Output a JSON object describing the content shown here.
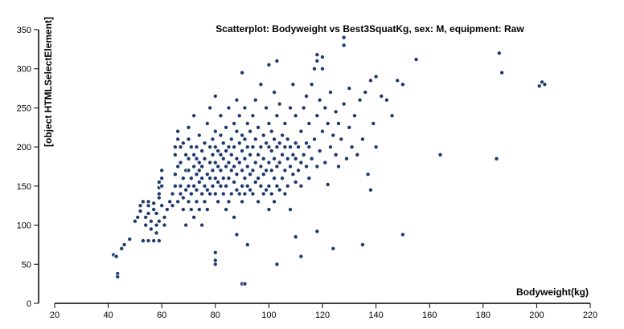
{
  "chart_data": {
    "type": "scatter",
    "title": "Scatterplot: Bodyweight vs Best3SquatKg, sex: M, equipment: Raw",
    "xlabel": "Bodyweight(kg)",
    "ylabel": "[object HTMLSelectElement]",
    "xlim": [
      20,
      220
    ],
    "ylim": [
      0,
      350
    ],
    "xticks": [
      20,
      40,
      60,
      80,
      100,
      120,
      140,
      160,
      180,
      200,
      220
    ],
    "yticks": [
      0,
      50,
      100,
      150,
      200,
      250,
      300,
      350
    ],
    "grid": false,
    "point_color": "#1f3a6e",
    "points": [
      [
        42,
        62
      ],
      [
        43,
        60
      ],
      [
        43.5,
        38
      ],
      [
        43.5,
        34
      ],
      [
        45,
        70
      ],
      [
        46,
        75
      ],
      [
        48,
        82
      ],
      [
        50,
        105
      ],
      [
        51,
        110
      ],
      [
        52,
        118
      ],
      [
        52,
        125
      ],
      [
        53,
        130
      ],
      [
        53,
        80
      ],
      [
        54,
        100
      ],
      [
        54,
        110
      ],
      [
        55,
        115
      ],
      [
        55,
        125
      ],
      [
        55,
        130
      ],
      [
        55,
        80
      ],
      [
        56,
        95
      ],
      [
        56,
        105
      ],
      [
        57,
        80
      ],
      [
        57,
        120
      ],
      [
        57,
        128
      ],
      [
        58,
        90
      ],
      [
        58,
        100
      ],
      [
        58,
        115
      ],
      [
        59,
        80
      ],
      [
        59,
        105
      ],
      [
        59,
        135
      ],
      [
        59,
        140
      ],
      [
        59,
        148
      ],
      [
        59,
        155
      ],
      [
        60,
        150
      ],
      [
        60,
        160
      ],
      [
        60,
        170
      ],
      [
        60,
        125
      ],
      [
        61,
        110
      ],
      [
        61,
        100
      ],
      [
        62,
        120
      ],
      [
        63,
        130
      ],
      [
        64,
        125
      ],
      [
        64,
        140
      ],
      [
        65,
        150
      ],
      [
        65,
        165
      ],
      [
        65,
        190
      ],
      [
        65,
        200
      ],
      [
        66,
        130
      ],
      [
        66,
        175
      ],
      [
        66,
        210
      ],
      [
        66,
        220
      ],
      [
        67,
        140
      ],
      [
        67,
        150
      ],
      [
        67,
        180
      ],
      [
        67,
        200
      ],
      [
        68,
        120
      ],
      [
        68,
        135
      ],
      [
        68,
        160
      ],
      [
        68,
        205
      ],
      [
        69,
        145
      ],
      [
        69,
        170
      ],
      [
        69,
        190
      ],
      [
        69,
        100
      ],
      [
        70,
        130
      ],
      [
        70,
        150
      ],
      [
        70,
        170
      ],
      [
        70,
        185
      ],
      [
        70,
        210
      ],
      [
        70,
        225
      ],
      [
        71,
        120
      ],
      [
        71,
        140
      ],
      [
        71,
        160
      ],
      [
        71,
        200
      ],
      [
        72,
        110
      ],
      [
        72,
        150
      ],
      [
        72,
        175
      ],
      [
        72,
        190
      ],
      [
        72,
        240
      ],
      [
        73,
        130
      ],
      [
        73,
        145
      ],
      [
        73,
        165
      ],
      [
        73,
        185
      ],
      [
        73,
        200
      ],
      [
        74,
        120
      ],
      [
        74,
        155
      ],
      [
        74,
        170
      ],
      [
        74,
        180
      ],
      [
        74,
        215
      ],
      [
        75,
        140
      ],
      [
        75,
        160
      ],
      [
        75,
        175
      ],
      [
        75,
        195
      ],
      [
        75,
        100
      ],
      [
        76,
        130
      ],
      [
        76,
        150
      ],
      [
        76,
        185
      ],
      [
        76,
        205
      ],
      [
        77,
        120
      ],
      [
        77,
        145
      ],
      [
        77,
        165
      ],
      [
        77,
        230
      ],
      [
        78,
        140
      ],
      [
        78,
        160
      ],
      [
        78,
        180
      ],
      [
        78,
        200
      ],
      [
        78,
        250
      ],
      [
        79,
        150
      ],
      [
        79,
        170
      ],
      [
        79,
        190
      ],
      [
        79,
        210
      ],
      [
        80,
        50
      ],
      [
        80,
        55
      ],
      [
        80,
        65
      ],
      [
        80,
        140
      ],
      [
        80,
        160
      ],
      [
        80,
        180
      ],
      [
        80,
        200
      ],
      [
        80,
        220
      ],
      [
        80,
        265
      ],
      [
        81,
        130
      ],
      [
        81,
        155
      ],
      [
        81,
        175
      ],
      [
        81,
        195
      ],
      [
        82,
        150
      ],
      [
        82,
        170
      ],
      [
        82,
        190
      ],
      [
        82,
        215
      ],
      [
        82,
        240
      ],
      [
        83,
        140
      ],
      [
        83,
        160
      ],
      [
        83,
        185
      ],
      [
        83,
        205
      ],
      [
        84,
        120
      ],
      [
        84,
        150
      ],
      [
        84,
        175
      ],
      [
        84,
        195
      ],
      [
        84,
        225
      ],
      [
        85,
        130
      ],
      [
        85,
        160
      ],
      [
        85,
        180
      ],
      [
        85,
        200
      ],
      [
        85,
        250
      ],
      [
        86,
        140
      ],
      [
        86,
        170
      ],
      [
        86,
        190
      ],
      [
        86,
        210
      ],
      [
        87,
        110
      ],
      [
        87,
        155
      ],
      [
        87,
        175
      ],
      [
        87,
        200
      ],
      [
        87,
        230
      ],
      [
        88,
        88
      ],
      [
        88,
        145
      ],
      [
        88,
        165
      ],
      [
        88,
        185
      ],
      [
        88,
        220
      ],
      [
        88,
        260
      ],
      [
        89,
        140
      ],
      [
        89,
        180
      ],
      [
        89,
        205
      ],
      [
        89,
        240
      ],
      [
        90,
        25
      ],
      [
        90,
        130
      ],
      [
        90,
        150
      ],
      [
        90,
        170
      ],
      [
        90,
        195
      ],
      [
        90,
        215
      ],
      [
        90,
        295
      ],
      [
        91,
        25
      ],
      [
        91,
        140
      ],
      [
        91,
        160
      ],
      [
        91,
        185
      ],
      [
        91,
        210
      ],
      [
        91,
        250
      ],
      [
        92,
        75
      ],
      [
        92,
        150
      ],
      [
        92,
        175
      ],
      [
        92,
        200
      ],
      [
        92,
        230
      ],
      [
        93,
        145
      ],
      [
        93,
        165
      ],
      [
        93,
        190
      ],
      [
        93,
        220
      ],
      [
        94,
        140
      ],
      [
        94,
        170
      ],
      [
        94,
        200
      ],
      [
        94,
        240
      ],
      [
        95,
        155
      ],
      [
        95,
        180
      ],
      [
        95,
        210
      ],
      [
        95,
        260
      ],
      [
        96,
        130
      ],
      [
        96,
        160
      ],
      [
        96,
        190
      ],
      [
        96,
        225
      ],
      [
        97,
        150
      ],
      [
        97,
        175
      ],
      [
        97,
        200
      ],
      [
        97,
        280
      ],
      [
        98,
        140
      ],
      [
        98,
        165
      ],
      [
        98,
        185
      ],
      [
        98,
        215
      ],
      [
        99,
        145
      ],
      [
        99,
        170
      ],
      [
        99,
        205
      ],
      [
        99,
        250
      ],
      [
        100,
        120
      ],
      [
        100,
        150
      ],
      [
        100,
        180
      ],
      [
        100,
        200
      ],
      [
        100,
        230
      ],
      [
        100,
        305
      ],
      [
        101,
        140
      ],
      [
        101,
        170
      ],
      [
        101,
        195
      ],
      [
        101,
        220
      ],
      [
        102,
        130
      ],
      [
        102,
        160
      ],
      [
        102,
        185
      ],
      [
        102,
        210
      ],
      [
        102,
        270
      ],
      [
        103,
        50
      ],
      [
        103,
        150
      ],
      [
        103,
        175
      ],
      [
        103,
        200
      ],
      [
        103,
        240
      ],
      [
        103,
        310
      ],
      [
        104,
        145
      ],
      [
        104,
        180
      ],
      [
        104,
        205
      ],
      [
        104,
        255
      ],
      [
        105,
        160
      ],
      [
        105,
        190
      ],
      [
        105,
        215
      ],
      [
        106,
        140
      ],
      [
        106,
        170
      ],
      [
        106,
        200
      ],
      [
        106,
        230
      ],
      [
        107,
        150
      ],
      [
        107,
        185
      ],
      [
        107,
        210
      ],
      [
        108,
        120
      ],
      [
        108,
        175
      ],
      [
        108,
        200
      ],
      [
        108,
        250
      ],
      [
        109,
        165
      ],
      [
        109,
        190
      ],
      [
        109,
        280
      ],
      [
        110,
        85
      ],
      [
        110,
        155
      ],
      [
        110,
        185
      ],
      [
        110,
        205
      ],
      [
        110,
        240
      ],
      [
        111,
        170
      ],
      [
        111,
        200
      ],
      [
        112,
        60
      ],
      [
        112,
        150
      ],
      [
        112,
        180
      ],
      [
        112,
        220
      ],
      [
        113,
        190
      ],
      [
        113,
        250
      ],
      [
        114,
        175
      ],
      [
        114,
        205
      ],
      [
        114,
        265
      ],
      [
        115,
        160
      ],
      [
        115,
        200
      ],
      [
        115,
        230
      ],
      [
        116,
        185
      ],
      [
        116,
        280
      ],
      [
        117,
        210
      ],
      [
        117,
        300
      ],
      [
        118,
        92
      ],
      [
        118,
        175
      ],
      [
        118,
        240
      ],
      [
        118,
        310
      ],
      [
        118,
        318
      ],
      [
        119,
        195
      ],
      [
        119,
        260
      ],
      [
        120,
        220
      ],
      [
        120,
        300
      ],
      [
        120,
        315
      ],
      [
        121,
        180
      ],
      [
        121,
        250
      ],
      [
        122,
        152
      ],
      [
        122,
        230
      ],
      [
        123,
        200
      ],
      [
        123,
        270
      ],
      [
        124,
        70
      ],
      [
        124,
        215
      ],
      [
        125,
        190
      ],
      [
        125,
        245
      ],
      [
        126,
        175
      ],
      [
        126,
        230
      ],
      [
        127,
        210
      ],
      [
        128,
        340
      ],
      [
        128,
        330
      ],
      [
        128,
        255
      ],
      [
        129,
        185
      ],
      [
        130,
        225
      ],
      [
        130,
        275
      ],
      [
        131,
        200
      ],
      [
        132,
        240
      ],
      [
        133,
        190
      ],
      [
        134,
        260
      ],
      [
        135,
        75
      ],
      [
        135,
        210
      ],
      [
        136,
        270
      ],
      [
        137,
        165
      ],
      [
        138,
        145
      ],
      [
        138,
        285
      ],
      [
        139,
        230
      ],
      [
        140,
        200
      ],
      [
        140,
        290
      ],
      [
        142,
        265
      ],
      [
        144,
        260
      ],
      [
        146,
        240
      ],
      [
        148,
        285
      ],
      [
        150,
        88
      ],
      [
        150,
        280
      ],
      [
        155,
        312
      ],
      [
        164,
        190
      ],
      [
        185,
        185
      ],
      [
        186,
        320
      ],
      [
        187,
        295
      ],
      [
        201,
        278
      ],
      [
        202,
        283
      ],
      [
        203,
        280
      ]
    ]
  }
}
